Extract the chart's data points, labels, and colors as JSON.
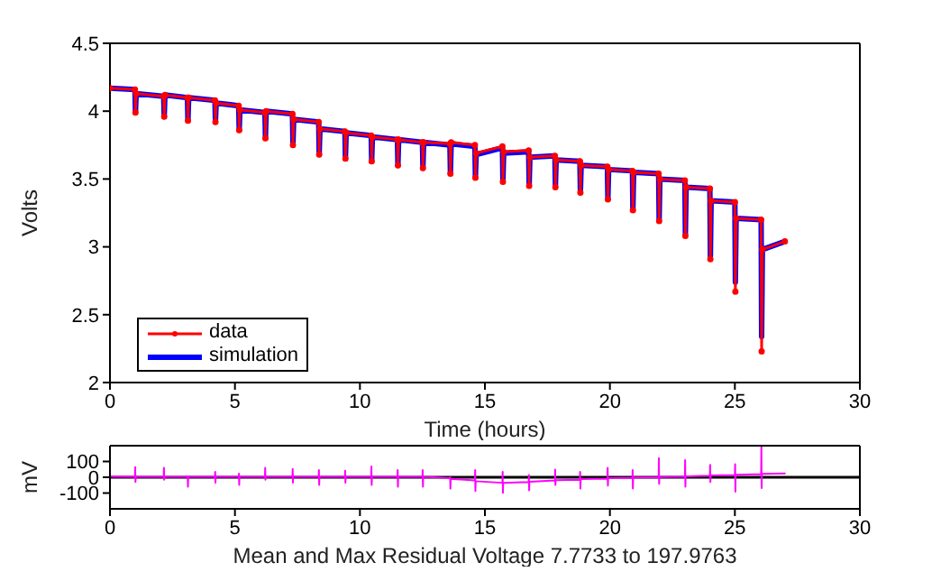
{
  "chart_data": [
    {
      "type": "line",
      "xlabel": "Time (hours)",
      "ylabel": "Volts",
      "xlim": [
        0,
        30
      ],
      "xticks": [
        0,
        5,
        10,
        15,
        20,
        25,
        30
      ],
      "ylim": [
        2,
        4.5
      ],
      "yticks": [
        2,
        2.5,
        3,
        3.5,
        4,
        4.5
      ],
      "legend": "bottom left",
      "series": [
        {
          "name": "data",
          "color": "#ff0000",
          "marker": "circle",
          "x": [
            0,
            1.0,
            1.02,
            1.05,
            2.15,
            2.17,
            2.2,
            3.1,
            3.12,
            3.15,
            4.2,
            4.22,
            4.25,
            5.15,
            5.17,
            5.2,
            6.2,
            6.22,
            6.25,
            7.3,
            7.32,
            7.35,
            8.35,
            8.37,
            8.4,
            9.4,
            9.42,
            9.45,
            10.45,
            10.47,
            10.5,
            11.5,
            11.52,
            11.55,
            12.5,
            12.52,
            12.55,
            13.6,
            13.62,
            13.65,
            14.6,
            14.62,
            14.65,
            15.7,
            15.72,
            15.75,
            16.75,
            16.77,
            16.8,
            17.8,
            17.82,
            17.85,
            18.8,
            18.82,
            18.85,
            19.9,
            19.92,
            19.95,
            20.9,
            20.92,
            20.95,
            21.95,
            21.97,
            22.0,
            23.0,
            23.02,
            23.05,
            24.0,
            24.02,
            24.05,
            25.0,
            25.02,
            25.05,
            26.05,
            26.07,
            26.1,
            27.0
          ],
          "values": [
            4.17,
            4.16,
            3.99,
            4.13,
            4.11,
            3.96,
            4.12,
            4.1,
            3.93,
            4.1,
            4.08,
            3.92,
            4.06,
            4.04,
            3.86,
            4.01,
            3.99,
            3.8,
            4.0,
            3.98,
            3.75,
            3.94,
            3.92,
            3.68,
            3.87,
            3.85,
            3.65,
            3.84,
            3.82,
            3.63,
            3.81,
            3.79,
            3.6,
            3.79,
            3.77,
            3.58,
            3.77,
            3.76,
            3.54,
            3.77,
            3.75,
            3.51,
            3.69,
            3.74,
            3.48,
            3.7,
            3.71,
            3.45,
            3.66,
            3.67,
            3.44,
            3.64,
            3.63,
            3.4,
            3.6,
            3.59,
            3.35,
            3.57,
            3.56,
            3.27,
            3.55,
            3.54,
            3.19,
            3.5,
            3.49,
            3.08,
            3.44,
            3.43,
            2.91,
            3.34,
            3.33,
            2.67,
            3.21,
            3.2,
            2.23,
            2.98,
            3.04
          ]
        },
        {
          "name": "simulation",
          "color": "#0000ff",
          "x": [
            0,
            1.0,
            1.02,
            1.05,
            2.15,
            2.17,
            2.2,
            3.1,
            3.12,
            3.15,
            4.2,
            4.22,
            4.25,
            5.15,
            5.17,
            5.2,
            6.2,
            6.22,
            6.25,
            7.3,
            7.32,
            7.35,
            8.35,
            8.37,
            8.4,
            9.4,
            9.42,
            9.45,
            10.45,
            10.47,
            10.5,
            11.5,
            11.52,
            11.55,
            12.5,
            12.52,
            12.55,
            13.6,
            13.62,
            13.65,
            14.6,
            14.62,
            14.65,
            15.7,
            15.72,
            15.75,
            16.75,
            16.77,
            16.8,
            17.8,
            17.82,
            17.85,
            18.8,
            18.82,
            18.85,
            19.9,
            19.92,
            19.95,
            20.9,
            20.92,
            20.95,
            21.95,
            21.97,
            22.0,
            23.0,
            23.02,
            23.05,
            24.0,
            24.02,
            24.05,
            25.0,
            25.02,
            25.05,
            26.05,
            26.07,
            26.1,
            27.0
          ],
          "values": [
            4.17,
            4.16,
            3.99,
            4.13,
            4.11,
            3.96,
            4.12,
            4.1,
            3.93,
            4.1,
            4.08,
            3.92,
            4.06,
            4.04,
            3.86,
            4.01,
            3.99,
            3.8,
            4.0,
            3.98,
            3.75,
            3.94,
            3.92,
            3.68,
            3.87,
            3.85,
            3.65,
            3.84,
            3.82,
            3.63,
            3.81,
            3.79,
            3.6,
            3.79,
            3.77,
            3.58,
            3.77,
            3.75,
            3.54,
            3.76,
            3.74,
            3.51,
            3.68,
            3.73,
            3.48,
            3.69,
            3.7,
            3.45,
            3.66,
            3.67,
            3.44,
            3.64,
            3.63,
            3.4,
            3.6,
            3.59,
            3.35,
            3.57,
            3.56,
            3.27,
            3.55,
            3.54,
            3.2,
            3.5,
            3.49,
            3.09,
            3.44,
            3.43,
            2.93,
            3.34,
            3.33,
            2.74,
            3.21,
            3.2,
            2.34,
            2.98,
            3.04
          ]
        }
      ]
    },
    {
      "type": "line",
      "xlabel": "Mean and Max Residual Voltage 7.7733 to 197.9763",
      "ylabel": "mV",
      "xlim": [
        0,
        30
      ],
      "xticks": [
        0,
        5,
        10,
        15,
        20,
        25,
        30
      ],
      "ylim": [
        -200,
        200
      ],
      "yticks": [
        -100,
        0,
        100
      ],
      "ref_lines": [
        {
          "axis": "y",
          "value": 0,
          "color": "#000000"
        }
      ],
      "series": [
        {
          "color": "#ff00ff",
          "marker": "none",
          "x": [
            0,
            1.0,
            1.01,
            1.02,
            1.03,
            2.15,
            2.16,
            2.17,
            2.18,
            3.1,
            3.11,
            3.12,
            3.13,
            4.2,
            4.21,
            4.22,
            4.23,
            5.15,
            5.16,
            5.17,
            5.18,
            6.2,
            6.21,
            6.22,
            6.23,
            7.3,
            7.31,
            7.32,
            7.33,
            8.35,
            8.36,
            8.37,
            8.38,
            9.4,
            9.41,
            9.42,
            9.43,
            10.45,
            10.46,
            10.47,
            10.48,
            11.5,
            11.51,
            11.52,
            11.53,
            12.5,
            12.51,
            12.52,
            12.53,
            13.6,
            13.61,
            13.62,
            13.63,
            14.6,
            14.61,
            14.62,
            14.63,
            15.7,
            15.71,
            15.72,
            15.73,
            16.75,
            16.76,
            16.77,
            16.78,
            17.8,
            17.81,
            17.82,
            17.83,
            18.8,
            18.81,
            18.82,
            18.83,
            19.9,
            19.91,
            19.92,
            19.93,
            20.9,
            20.91,
            20.92,
            20.93,
            21.95,
            21.96,
            21.97,
            21.98,
            23.0,
            23.01,
            23.02,
            23.03,
            24.0,
            24.01,
            24.02,
            24.03,
            25.0,
            25.01,
            25.02,
            25.03,
            26.05,
            26.06,
            26.07,
            26.08,
            27.0
          ],
          "values": [
            5,
            3,
            64,
            -30,
            3,
            3,
            60,
            -15,
            3,
            3,
            5,
            -60,
            3,
            3,
            34,
            -34,
            3,
            3,
            23,
            -49,
            3,
            3,
            60,
            -15,
            3,
            3,
            53,
            -34,
            3,
            3,
            45,
            -49,
            3,
            3,
            42,
            -34,
            3,
            3,
            68,
            -49,
            3,
            3,
            45,
            -60,
            3,
            3,
            45,
            -60,
            3,
            -5,
            0,
            -72,
            -10,
            -20,
            45,
            -87,
            -25,
            -35,
            34,
            -98,
            -35,
            -30,
            15,
            -83,
            -28,
            -20,
            49,
            -49,
            -18,
            -15,
            34,
            -72,
            -12,
            -8,
            60,
            -53,
            -6,
            -3,
            45,
            -72,
            -2,
            0,
            121,
            -42,
            2,
            5,
            109,
            -60,
            6,
            10,
            79,
            -30,
            11,
            15,
            83,
            -91,
            16,
            20,
            198,
            -68,
            22,
            25
          ]
        }
      ]
    }
  ]
}
